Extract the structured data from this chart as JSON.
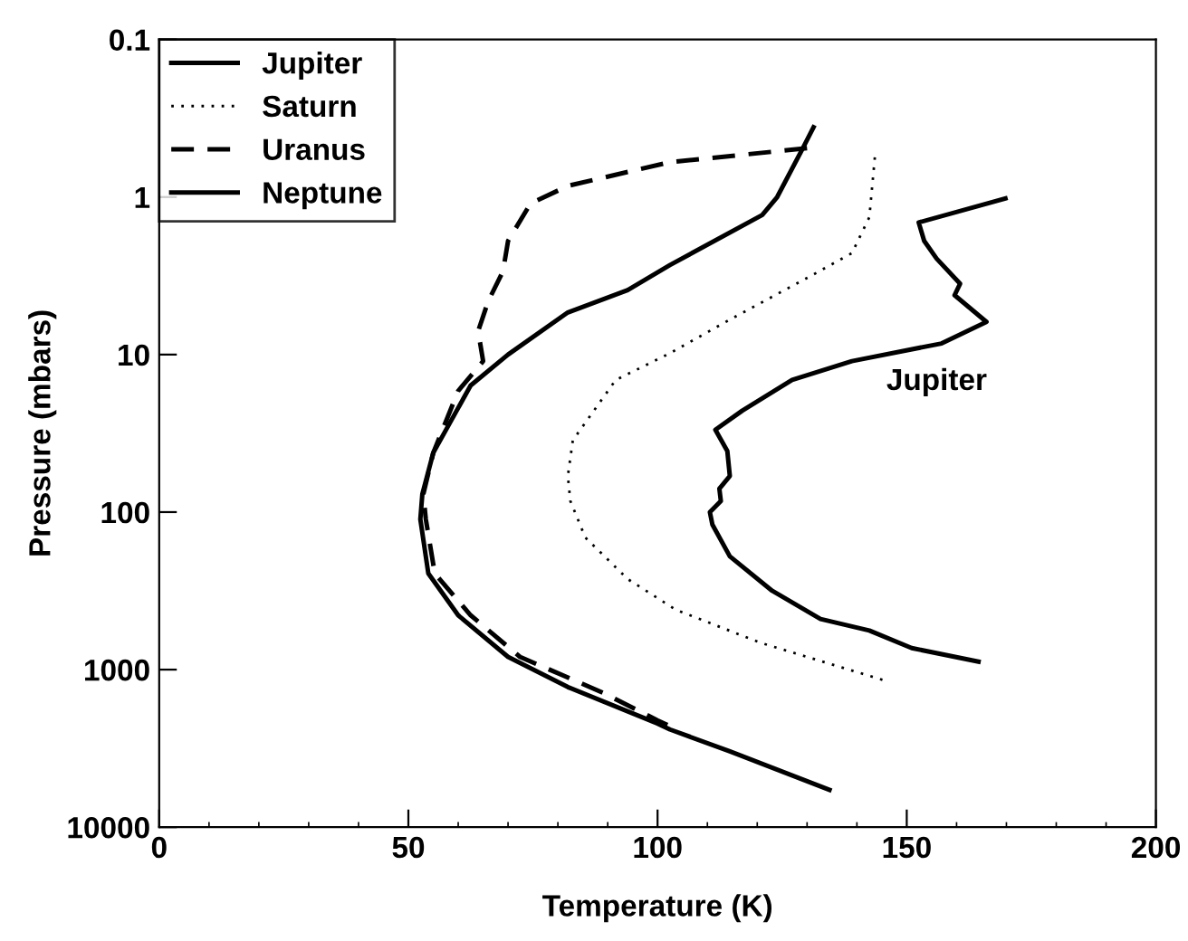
{
  "chart_data": {
    "type": "line",
    "xlabel": "Temperature (K)",
    "ylabel": "Pressure (mbars)",
    "xlim": [
      0,
      200
    ],
    "xticks": [
      0,
      50,
      100,
      150,
      200
    ],
    "ylim": [
      10000,
      0.1
    ],
    "yticks": [
      0.1,
      1,
      10,
      100,
      1000,
      10000
    ],
    "log": "y",
    "grid": false,
    "legend": "top left",
    "marker": "none",
    "series": [
      {
        "name": "Jupiter",
        "color": "#000000",
        "line_style": "solid",
        "x": [
          169.8,
          152.4,
          153.5,
          156,
          160.7,
          159.6,
          166,
          157,
          139,
          127,
          117,
          111.6,
          114,
          114.5,
          112.4,
          112.7,
          110.5,
          111,
          114.5,
          123,
          132.7,
          142.5,
          151,
          164.4
        ],
        "values": [
          1.02,
          1.45,
          1.9,
          2.46,
          3.55,
          4.2,
          6.2,
          8.5,
          11,
          14.5,
          22.7,
          30,
          41,
          59,
          71,
          85,
          100,
          120,
          191,
          316,
          477,
          565,
          730,
          890
        ]
      },
      {
        "name": "Saturn",
        "color": "#000000",
        "line_style": "dotted",
        "x": [
          143.6,
          142.5,
          139,
          130.5,
          114.5,
          102.5,
          91.6,
          83,
          82,
          82.5,
          85.5,
          94,
          103.6,
          120.7,
          145.5
        ],
        "values": [
          0.56,
          1.34,
          2.27,
          3.2,
          6,
          9.8,
          14.5,
          35,
          59,
          85,
          145,
          266,
          416,
          676,
          1170
        ]
      },
      {
        "name": "Uranus",
        "color": "#000000",
        "line_style": "dashed",
        "x": [
          130,
          102.5,
          82,
          74.5,
          70,
          69,
          66,
          64,
          65,
          60,
          55,
          53,
          53.5,
          55.3,
          62.5,
          72.4,
          89,
          100,
          102
        ],
        "values": [
          0.49,
          0.6,
          0.85,
          1.1,
          1.9,
          2.95,
          4.6,
          7.1,
          11,
          17,
          42,
          77,
          111,
          245,
          452,
          830,
          1400,
          2100,
          2250
        ]
      },
      {
        "name": "Neptune",
        "color": "#000000",
        "line_style": "solid",
        "x": [
          131.3,
          129,
          124,
          121,
          102.5,
          94,
          82,
          70,
          62.5,
          55,
          52.8,
          52.4,
          54,
          60,
          70,
          82,
          100,
          102.5,
          114.5,
          134.5
        ],
        "values": [
          0.36,
          0.5,
          1.0,
          1.3,
          2.7,
          3.9,
          5.4,
          10,
          15.7,
          42,
          77,
          111,
          245,
          452,
          830,
          1290,
          2200,
          2400,
          3300,
          5800
        ]
      }
    ],
    "annotations": [
      "Jupiter"
    ]
  }
}
